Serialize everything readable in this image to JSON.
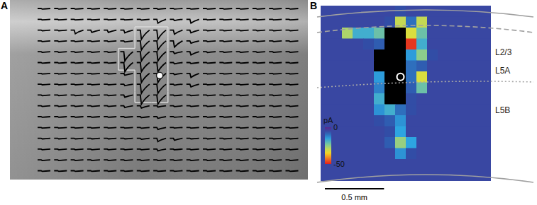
{
  "chart_data": [
    {
      "type": "trace_map",
      "panel_label": "A"
    },
    {
      "type": "heatmap",
      "panel_label": "B",
      "tick_labels": false,
      "cells": [
        [
          -5,
          -5,
          -5,
          -5,
          -5,
          -5,
          -5,
          -6,
          -5,
          -5,
          -5,
          -5,
          -5,
          -5,
          -5,
          -5
        ],
        [
          -5,
          -5,
          -5,
          -5,
          -5,
          -5,
          -6,
          -30,
          -10,
          -30,
          -5,
          -5,
          -5,
          -5,
          -5,
          -5
        ],
        [
          -5,
          -5,
          -28,
          -18,
          -18,
          -22,
          null,
          null,
          -32,
          -22,
          -5,
          -5,
          -5,
          -5,
          -5,
          -5
        ],
        [
          -5,
          -5,
          -5,
          -5,
          -6,
          -8,
          null,
          null,
          -48,
          -18,
          -5,
          -5,
          -5,
          -5,
          -5,
          -5
        ],
        [
          -5,
          -5,
          -5,
          -5,
          -5,
          null,
          null,
          null,
          -15,
          -25,
          -6,
          -5,
          -5,
          -5,
          -5,
          -5
        ],
        [
          -5,
          -5,
          -5,
          -5,
          -5,
          null,
          null,
          null,
          -10,
          -8,
          -5,
          -5,
          -5,
          -5,
          -5,
          -5
        ],
        [
          -5,
          -5,
          -5,
          -5,
          -5,
          -15,
          null,
          null,
          -10,
          -32,
          -5,
          -5,
          -5,
          -5,
          -5,
          -5
        ],
        [
          -5,
          -5,
          -5,
          -5,
          -5,
          -12,
          null,
          null,
          -8,
          -22,
          -5,
          -5,
          -5,
          -5,
          -5,
          -5
        ],
        [
          -5,
          -5,
          -5,
          -5,
          -5,
          -18,
          null,
          null,
          -6,
          -5,
          -5,
          -5,
          -5,
          -5,
          -5,
          -5
        ],
        [
          -5,
          -5,
          -5,
          -5,
          -5,
          -14,
          -18,
          -10,
          -6,
          -5,
          -5,
          -5,
          -5,
          -5,
          -5,
          -5
        ],
        [
          -5,
          -5,
          -5,
          -5,
          -5,
          -6,
          -8,
          -14,
          -5,
          -5,
          -5,
          -5,
          -5,
          -5,
          -5,
          -5
        ],
        [
          -5,
          -5,
          -5,
          -5,
          -5,
          -5,
          -6,
          -16,
          -5,
          -5,
          -5,
          -5,
          -5,
          -5,
          -5,
          -5
        ],
        [
          -5,
          -5,
          -5,
          -5,
          -5,
          -5,
          -8,
          -26,
          -16,
          -5,
          -5,
          -5,
          -5,
          -5,
          -5,
          -5
        ],
        [
          -5,
          -5,
          -5,
          -5,
          -5,
          -5,
          -5,
          -14,
          -6,
          -5,
          -5,
          -5,
          -5,
          -5,
          -5,
          -5
        ],
        [
          -5,
          -5,
          -5,
          -5,
          -5,
          -5,
          -5,
          -5,
          -5,
          -5,
          -5,
          -5,
          -5,
          -5,
          -5,
          -5
        ],
        [
          -5,
          -5,
          -5,
          -5,
          -5,
          -5,
          -5,
          -5,
          -5,
          -5,
          -5,
          -5,
          -5,
          -5,
          -5,
          -5
        ]
      ],
      "colorbar": {
        "range": [
          -50,
          0
        ],
        "ticks": [
          0,
          -50
        ],
        "label": "pA"
      },
      "layer_labels": [
        "L2/3",
        "L5A",
        "L5B"
      ],
      "soma": {
        "row": 6,
        "col": 7
      },
      "grid_spacing_mm": 0.09,
      "scale_bar": {
        "length": 0.5,
        "label": "0.5 mm"
      }
    }
  ]
}
